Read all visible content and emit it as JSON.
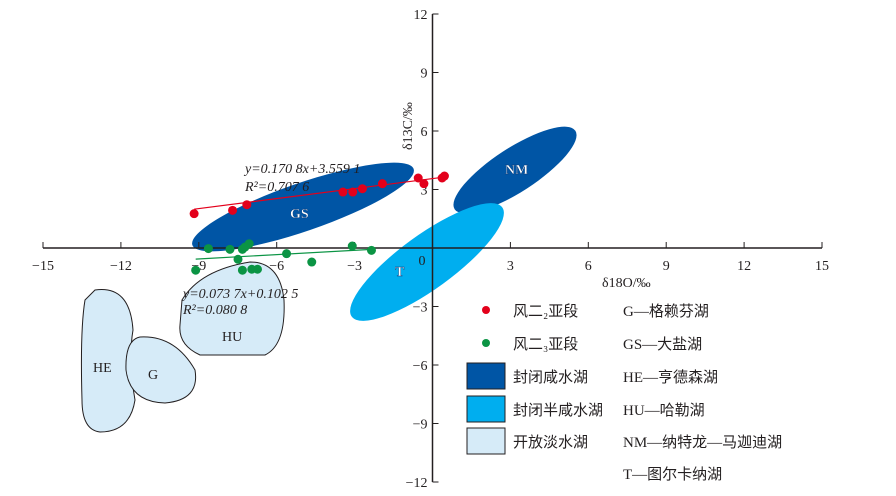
{
  "chart_data": {
    "type": "scatter",
    "xlabel": "δ18O/‰",
    "ylabel": "δ13C/‰",
    "xlim": [
      -15,
      15
    ],
    "ylim": [
      -12,
      12
    ],
    "xticks": [
      -15,
      -12,
      -9,
      -6,
      -3,
      0,
      3,
      6,
      9,
      12,
      15
    ],
    "yticks": [
      -12,
      -9,
      -6,
      -3,
      3,
      6,
      9,
      12
    ],
    "xtick_labels": [
      "−15",
      "−12",
      "−9",
      "−6",
      "−3",
      "0",
      "3",
      "6",
      "9",
      "12",
      "15"
    ],
    "ytick_labels": [
      "−12",
      "−9",
      "−6",
      "−3",
      "3",
      "6",
      "9",
      "12"
    ],
    "series": [
      {
        "name": "风二2亚段",
        "color": "#e3001b",
        "points": [
          [
            -9.18,
            1.76
          ],
          [
            -7.7,
            1.93
          ],
          [
            -7.15,
            2.22
          ],
          [
            -3.45,
            2.87
          ],
          [
            -3.07,
            2.87
          ],
          [
            -2.7,
            3.04
          ],
          [
            -1.93,
            3.3
          ],
          [
            -0.55,
            3.59
          ],
          [
            -0.33,
            3.3
          ],
          [
            0.37,
            3.59
          ],
          [
            0.46,
            3.69
          ]
        ],
        "fit": {
          "slope": 0.1708,
          "intercept": 3.5591,
          "equation": "y=0.170 8x+3.559 1",
          "r2": "R²=0.707 6"
        }
      },
      {
        "name": "风二3亚段",
        "color": "#0b9444",
        "points": [
          [
            -8.63,
            -0.03
          ],
          [
            -7.8,
            -0.07
          ],
          [
            -7.32,
            -0.07
          ],
          [
            -7.06,
            0.22
          ],
          [
            -7.22,
            0.05
          ],
          [
            -9.12,
            -1.14
          ],
          [
            -7.49,
            -0.58
          ],
          [
            -7.32,
            -1.14
          ],
          [
            -6.96,
            -1.09
          ],
          [
            -6.74,
            -1.09
          ],
          [
            -5.62,
            -0.29
          ],
          [
            -4.65,
            -0.72
          ],
          [
            -3.09,
            0.1
          ],
          [
            -2.35,
            -0.12
          ]
        ],
        "fit": {
          "slope": 0.0737,
          "intercept": 0.1025,
          "equation": "y=0.073 7x+0.102 5",
          "r2": "R²=0.080 8"
        }
      }
    ],
    "regions": [
      {
        "label": "GS",
        "type": "封闭咸水湖",
        "color": "#0055a5"
      },
      {
        "label": "NM",
        "type": "封闭咸水湖",
        "color": "#0055a5"
      },
      {
        "label": "T",
        "type": "封闭半咸水湖",
        "color": "#00aeef"
      },
      {
        "label": "HU",
        "type": "开放淡水湖",
        "color": "#d6ebf8"
      },
      {
        "label": "HE",
        "type": "开放淡水湖",
        "color": "#d6ebf8"
      },
      {
        "label": "G",
        "type": "开放淡水湖",
        "color": "#d6ebf8"
      }
    ],
    "legend": {
      "markers": [
        "风二₂亚段",
        "风二₃亚段"
      ],
      "fills": [
        "封闭咸水湖",
        "封闭半咸水湖",
        "开放淡水湖"
      ],
      "abbrev": [
        "G—格赖芬湖",
        "GS—大盐湖",
        "HE—亨德森湖",
        "HU—哈勒湖",
        "NM—纳特龙—马迦迪湖",
        "T—图尔卡纳湖"
      ]
    }
  }
}
